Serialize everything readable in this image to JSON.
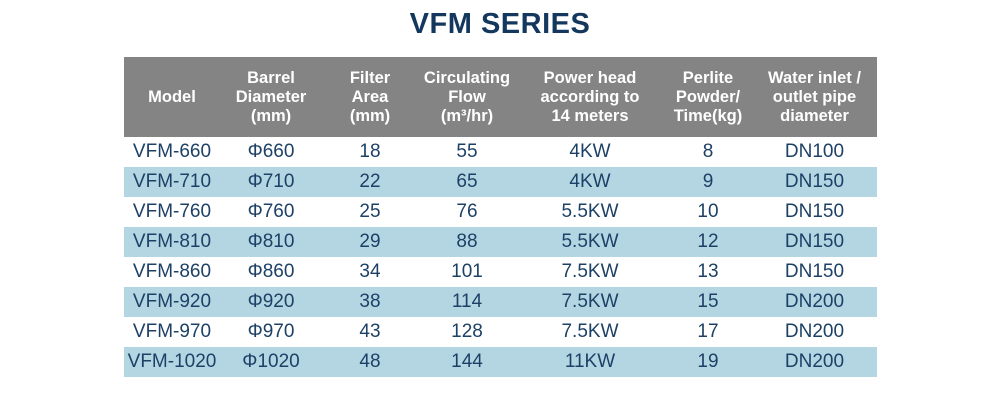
{
  "title": "VFM SERIES",
  "colors": {
    "title_text": "#14375e",
    "header_bg": "#848484",
    "header_text": "#ffffff",
    "row_bg": "#ffffff",
    "row_alt_bg": "#b4d6e3",
    "body_text": "#1d4166"
  },
  "table": {
    "headers": [
      "Model",
      "Barrel\nDiameter\n(mm)",
      "Filter\nArea\n(mm)",
      "Circulating\nFlow\n(m³/hr)",
      "Power head\naccording to\n14 meters",
      "Perlite\nPowder/\nTime(kg)",
      "Water inlet /\noutlet pipe\ndiameter"
    ],
    "rows": [
      [
        "VFM-660",
        "Φ660",
        "18",
        "55",
        "4KW",
        "8",
        "DN100"
      ],
      [
        "VFM-710",
        "Φ710",
        "22",
        "65",
        "4KW",
        "9",
        "DN150"
      ],
      [
        "VFM-760",
        "Φ760",
        "25",
        "76",
        "5.5KW",
        "10",
        "DN150"
      ],
      [
        "VFM-810",
        "Φ810",
        "29",
        "88",
        "5.5KW",
        "12",
        "DN150"
      ],
      [
        "VFM-860",
        "Φ860",
        "34",
        "101",
        "7.5KW",
        "13",
        "DN150"
      ],
      [
        "VFM-920",
        "Φ920",
        "38",
        "114",
        "7.5KW",
        "15",
        "DN200"
      ],
      [
        "VFM-970",
        "Φ970",
        "43",
        "128",
        "7.5KW",
        "17",
        "DN200"
      ],
      [
        "VFM-1020",
        "Φ1020",
        "48",
        "144",
        "11KW",
        "19",
        "DN200"
      ]
    ]
  }
}
